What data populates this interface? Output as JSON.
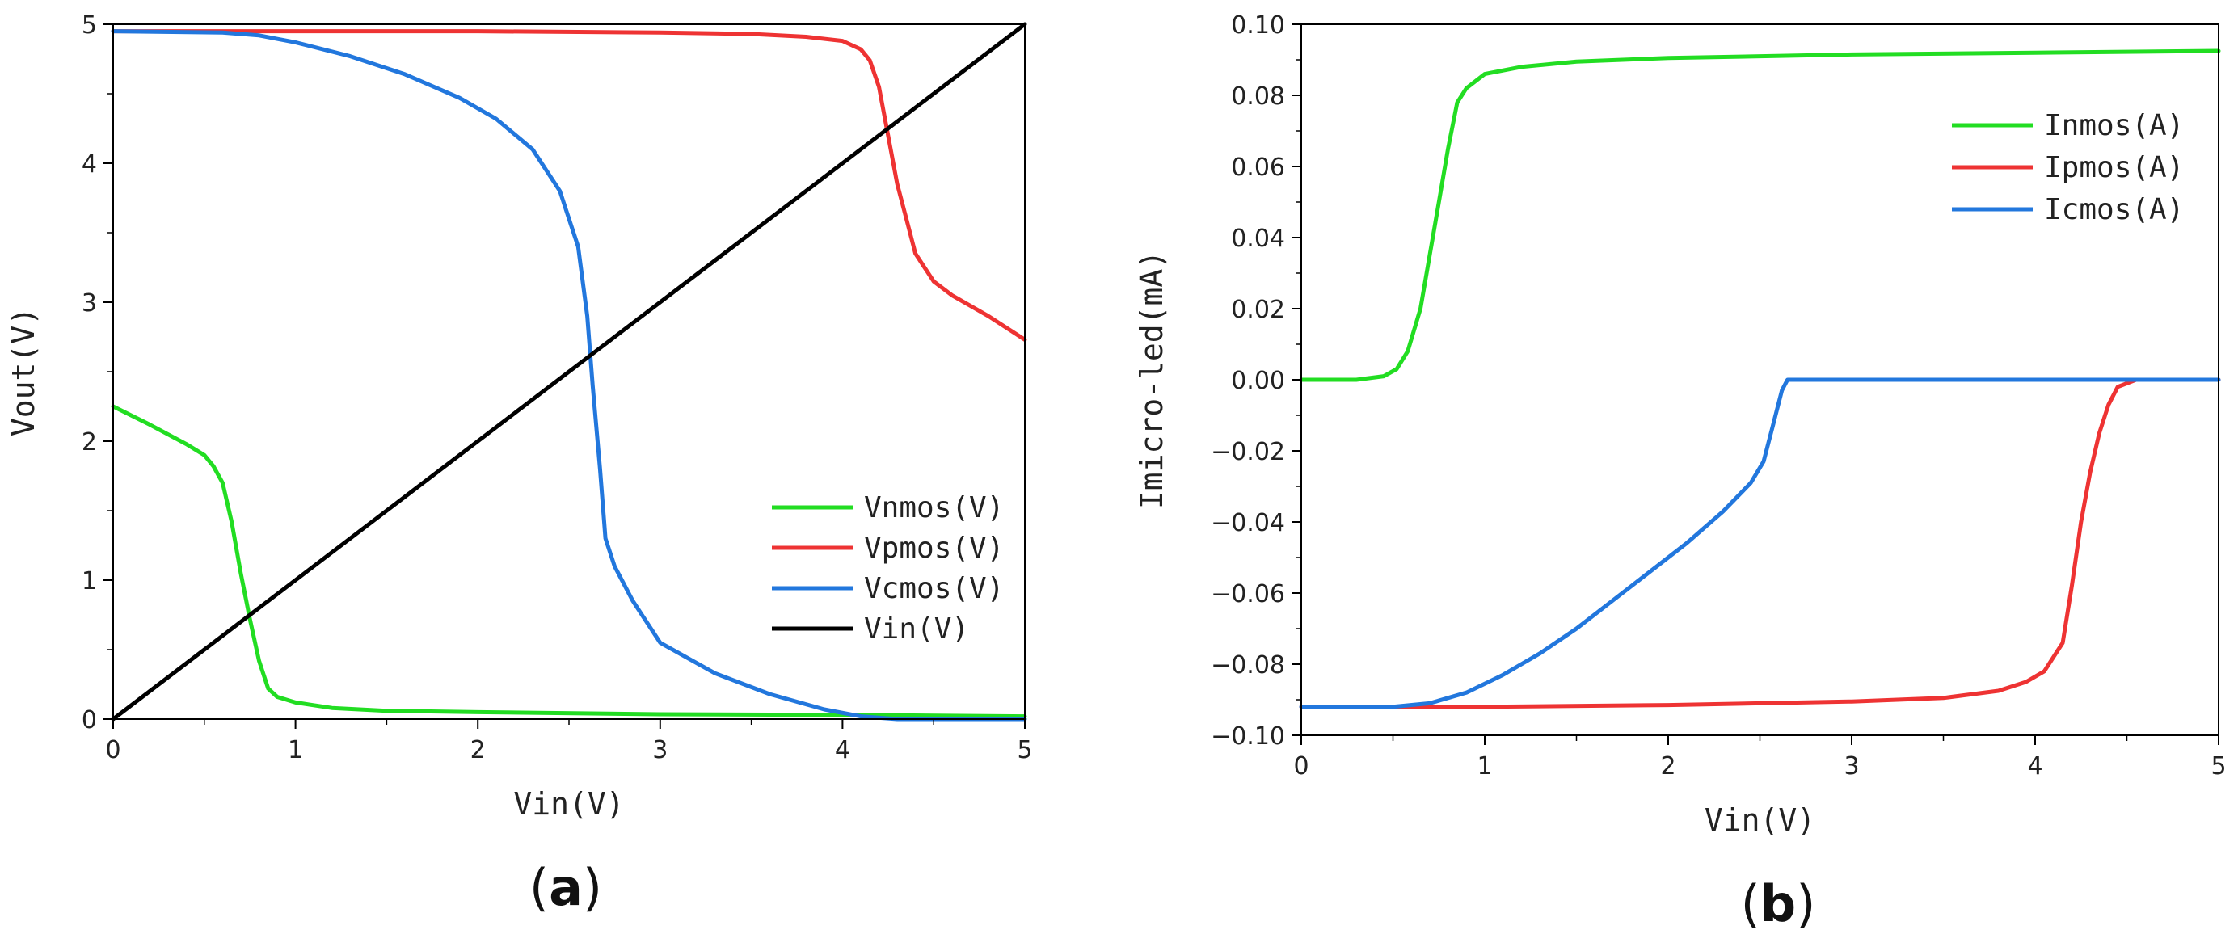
{
  "chart_data": [
    {
      "type": "line",
      "panel_label": "a",
      "xlabel": "Vin(V)",
      "ylabel": "Vout(V)",
      "xlim": [
        0,
        5
      ],
      "ylim": [
        0,
        5
      ],
      "xticks": [
        0,
        1,
        2,
        3,
        4,
        5
      ],
      "yticks": [
        0,
        1,
        2,
        3,
        4,
        5
      ],
      "xtick_labels": [
        "0",
        "1",
        "2",
        "3",
        "4",
        "5"
      ],
      "ytick_labels": [
        "0",
        "1",
        "2",
        "3",
        "4",
        "5"
      ],
      "legend_position": "bottom-right",
      "series": [
        {
          "name": "Vnmos(V)",
          "color": "#22dd22",
          "points": [
            [
              0,
              2.25
            ],
            [
              0.2,
              2.12
            ],
            [
              0.4,
              1.98
            ],
            [
              0.5,
              1.9
            ],
            [
              0.55,
              1.82
            ],
            [
              0.6,
              1.7
            ],
            [
              0.65,
              1.42
            ],
            [
              0.7,
              1.05
            ],
            [
              0.75,
              0.72
            ],
            [
              0.8,
              0.42
            ],
            [
              0.85,
              0.22
            ],
            [
              0.9,
              0.16
            ],
            [
              1.0,
              0.12
            ],
            [
              1.2,
              0.08
            ],
            [
              1.5,
              0.06
            ],
            [
              2.0,
              0.05
            ],
            [
              3.0,
              0.035
            ],
            [
              4.0,
              0.03
            ],
            [
              5.0,
              0.02
            ]
          ]
        },
        {
          "name": "Vpmos(V)",
          "color": "#ee3333",
          "points": [
            [
              0,
              4.95
            ],
            [
              1.0,
              4.95
            ],
            [
              2.0,
              4.95
            ],
            [
              3.0,
              4.94
            ],
            [
              3.5,
              4.93
            ],
            [
              3.8,
              4.91
            ],
            [
              4.0,
              4.88
            ],
            [
              4.1,
              4.82
            ],
            [
              4.15,
              4.74
            ],
            [
              4.2,
              4.55
            ],
            [
              4.25,
              4.2
            ],
            [
              4.3,
              3.85
            ],
            [
              4.35,
              3.6
            ],
            [
              4.4,
              3.35
            ],
            [
              4.5,
              3.15
            ],
            [
              4.6,
              3.05
            ],
            [
              4.8,
              2.9
            ],
            [
              5.0,
              2.73
            ]
          ]
        },
        {
          "name": "Vcmos(V)",
          "color": "#2277dd",
          "points": [
            [
              0,
              4.95
            ],
            [
              0.6,
              4.94
            ],
            [
              0.8,
              4.92
            ],
            [
              1.0,
              4.87
            ],
            [
              1.3,
              4.77
            ],
            [
              1.6,
              4.64
            ],
            [
              1.9,
              4.47
            ],
            [
              2.1,
              4.32
            ],
            [
              2.3,
              4.1
            ],
            [
              2.45,
              3.8
            ],
            [
              2.55,
              3.4
            ],
            [
              2.6,
              2.9
            ],
            [
              2.63,
              2.4
            ],
            [
              2.67,
              1.8
            ],
            [
              2.7,
              1.3
            ],
            [
              2.75,
              1.1
            ],
            [
              2.85,
              0.85
            ],
            [
              3.0,
              0.55
            ],
            [
              3.3,
              0.33
            ],
            [
              3.6,
              0.18
            ],
            [
              3.9,
              0.07
            ],
            [
              4.1,
              0.02
            ],
            [
              4.3,
              0.0
            ],
            [
              5.0,
              0.0
            ]
          ]
        },
        {
          "name": "Vin(V)",
          "color": "#000000",
          "points": [
            [
              0,
              0
            ],
            [
              5,
              5
            ]
          ]
        }
      ]
    },
    {
      "type": "line",
      "panel_label": "b",
      "xlabel": "Vin(V)",
      "ylabel": "Imicro-led(mA)",
      "xlim": [
        0,
        5
      ],
      "ylim": [
        -0.1,
        0.1
      ],
      "xticks": [
        0,
        1,
        2,
        3,
        4,
        5
      ],
      "yticks": [
        0.1,
        0.08,
        0.06,
        0.04,
        0.02,
        0.0,
        -0.02,
        -0.04,
        -0.06,
        -0.08,
        -0.1
      ],
      "xtick_labels": [
        "0",
        "1",
        "2",
        "3",
        "4",
        "5"
      ],
      "ytick_labels": [
        "0.10",
        "0.08",
        "0.06",
        "0.04",
        "0.02",
        "0.00",
        "−0.02",
        "−0.04",
        "−0.06",
        "−0.08",
        "−0.10"
      ],
      "legend_position": "top-right",
      "series": [
        {
          "name": "Inmos(A)",
          "color": "#22dd22",
          "points": [
            [
              0,
              0.0
            ],
            [
              0.3,
              0.0
            ],
            [
              0.45,
              0.001
            ],
            [
              0.52,
              0.003
            ],
            [
              0.58,
              0.008
            ],
            [
              0.65,
              0.02
            ],
            [
              0.7,
              0.035
            ],
            [
              0.75,
              0.05
            ],
            [
              0.8,
              0.065
            ],
            [
              0.85,
              0.078
            ],
            [
              0.9,
              0.082
            ],
            [
              1.0,
              0.086
            ],
            [
              1.2,
              0.088
            ],
            [
              1.5,
              0.0895
            ],
            [
              2.0,
              0.0905
            ],
            [
              3.0,
              0.0915
            ],
            [
              4.0,
              0.092
            ],
            [
              5.0,
              0.0925
            ]
          ]
        },
        {
          "name": "Ipmos(A)",
          "color": "#ee3333",
          "points": [
            [
              0,
              -0.092
            ],
            [
              1.0,
              -0.092
            ],
            [
              2.0,
              -0.0915
            ],
            [
              3.0,
              -0.0905
            ],
            [
              3.5,
              -0.0895
            ],
            [
              3.8,
              -0.0875
            ],
            [
              3.95,
              -0.085
            ],
            [
              4.05,
              -0.082
            ],
            [
              4.15,
              -0.074
            ],
            [
              4.2,
              -0.058
            ],
            [
              4.25,
              -0.04
            ],
            [
              4.3,
              -0.026
            ],
            [
              4.35,
              -0.015
            ],
            [
              4.4,
              -0.007
            ],
            [
              4.45,
              -0.002
            ],
            [
              4.55,
              0.0
            ],
            [
              5.0,
              0.0
            ]
          ]
        },
        {
          "name": "Icmos(A)",
          "color": "#2277dd",
          "points": [
            [
              0,
              -0.092
            ],
            [
              0.5,
              -0.092
            ],
            [
              0.7,
              -0.091
            ],
            [
              0.9,
              -0.088
            ],
            [
              1.1,
              -0.083
            ],
            [
              1.3,
              -0.077
            ],
            [
              1.5,
              -0.07
            ],
            [
              1.7,
              -0.062
            ],
            [
              1.9,
              -0.054
            ],
            [
              2.1,
              -0.046
            ],
            [
              2.3,
              -0.037
            ],
            [
              2.45,
              -0.029
            ],
            [
              2.52,
              -0.023
            ],
            [
              2.57,
              -0.013
            ],
            [
              2.62,
              -0.003
            ],
            [
              2.65,
              0.0
            ],
            [
              5.0,
              0.0
            ]
          ]
        }
      ]
    }
  ]
}
